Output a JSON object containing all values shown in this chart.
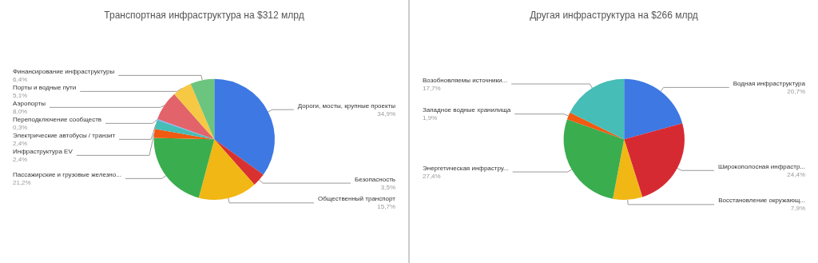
{
  "chart_data": [
    {
      "type": "pie",
      "title": "Транспортная инфраструктура на $312 млрд",
      "categories": [
        "Дороги, мосты, крупные проекты",
        "Безопасность",
        "Общественный транспорт",
        "Пассажирские и грузовые железно...",
        "Инфраструктура EV",
        "Электрические автобусы / транзит",
        "Переподключение сообществ",
        "Аэропорты",
        "Порты и водные пути",
        "Финансирование инфраструктуры"
      ],
      "values": [
        34.9,
        3.5,
        15.7,
        21.2,
        2.4,
        2.4,
        0.3,
        8.0,
        5.1,
        6.4
      ],
      "value_labels": [
        "34,9%",
        "3,5%",
        "15,7%",
        "21,2%",
        "2,4%",
        "2,4%",
        "0,3%",
        "8,0%",
        "5,1%",
        "6,4%"
      ],
      "colors": [
        "#3d78e3",
        "#d9312f",
        "#f1b714",
        "#3aad4f",
        "#f05a11",
        "#46bdb6",
        "#7baaf7",
        "#e26369",
        "#f6c844",
        "#6cc57f"
      ]
    },
    {
      "type": "pie",
      "title": "Другая инфраструктура на $266 млрд",
      "categories": [
        "Водная инфраструктура",
        "Широкополосная инфрастр...",
        "Восстановление окружающ...",
        "Энергетическая инфрастру...",
        "Западное водные хранилища",
        "Возобновляемы источники..."
      ],
      "values": [
        20.7,
        24.4,
        7.9,
        27.4,
        1.9,
        17.7
      ],
      "value_labels": [
        "20,7%",
        "24,4%",
        "7,9%",
        "27,4%",
        "1,9%",
        "17,7%"
      ],
      "colors": [
        "#3d78e3",
        "#d62a33",
        "#f1b714",
        "#3aad4f",
        "#f05a11",
        "#46bdb6"
      ]
    }
  ]
}
